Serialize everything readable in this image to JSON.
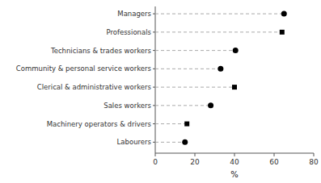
{
  "chart_data": {
    "type": "lollipop",
    "orientation": "horizontal",
    "categories": [
      "Labourers",
      "Machinery operators & drivers",
      "Sales workers",
      "Clerical & administrative workers",
      "Community & personal service workers",
      "Technicians & trades workers",
      "Professionals",
      "Managers"
    ],
    "series": [
      {
        "marker": "circle",
        "color": "#000000",
        "line_style": "dashed",
        "values": [
          15.0,
          null,
          28.0,
          null,
          33.0,
          40.5,
          null,
          65.0
        ]
      },
      {
        "marker": "square",
        "color": "#000000",
        "line_style": "dashed",
        "values": [
          null,
          16.0,
          null,
          40.0,
          null,
          null,
          64.0,
          null
        ]
      }
    ],
    "xlim": [
      0,
      80
    ],
    "xticks": [
      0,
      20,
      40,
      60,
      80
    ],
    "xlabel": "%",
    "grid": false
  }
}
